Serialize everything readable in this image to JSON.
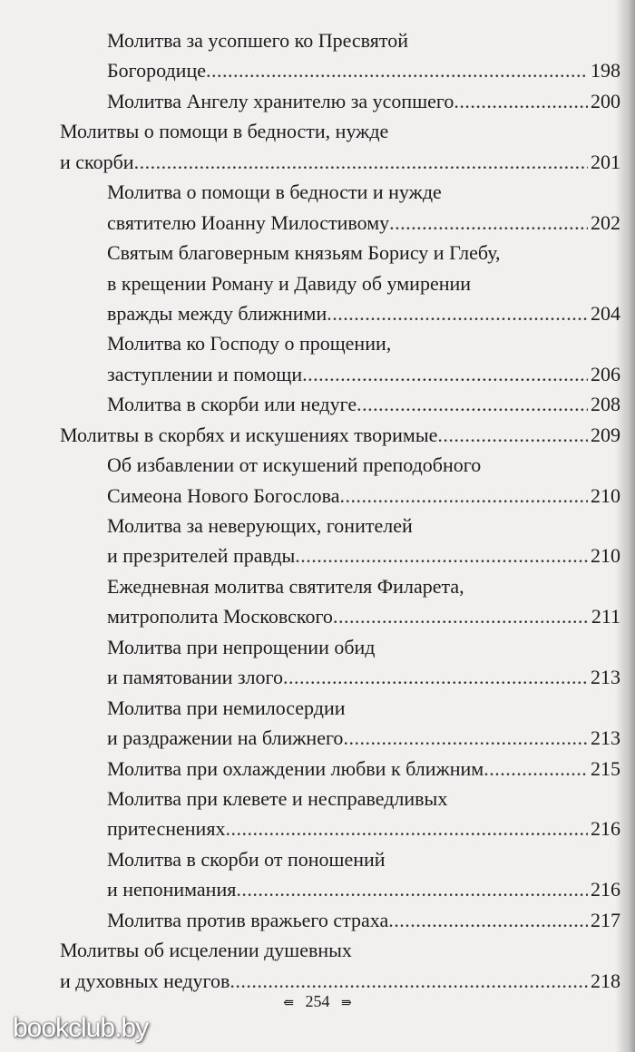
{
  "entries": [
    {
      "level": 2,
      "lines": [
        "Молитва за усопшего ко Пресвятой",
        "Богородице"
      ],
      "page": "198"
    },
    {
      "level": 2,
      "lines": [
        "Молитва Ангелу хранителю за усопшего"
      ],
      "page": "200"
    },
    {
      "level": 1,
      "lines": [
        "Молитвы о помощи в бедности, нужде",
        "и скорби"
      ],
      "page": "201"
    },
    {
      "level": 2,
      "lines": [
        "Молитва о помощи в бедности и нужде",
        "святителю Иоанну Милостивому"
      ],
      "page": "202"
    },
    {
      "level": 2,
      "lines": [
        "Святым благоверным князьям Борису и Глебу,",
        "в крещении Роману и Давиду об умирении",
        "вражды между ближними"
      ],
      "page": "204"
    },
    {
      "level": 2,
      "lines": [
        "Молитва ко Господу о прощении,",
        "заступлении и помощи"
      ],
      "page": "206"
    },
    {
      "level": 2,
      "lines": [
        "Молитва в скорби или недуге"
      ],
      "page": "208"
    },
    {
      "level": 1,
      "lines": [
        "Молитвы в скорбях и искушениях творимые"
      ],
      "page": "209"
    },
    {
      "level": 2,
      "lines": [
        "Об избавлении от искушений преподобного",
        "Симеона Нового Богослова"
      ],
      "page": "210"
    },
    {
      "level": 2,
      "lines": [
        "Молитва за неверующих, гонителей",
        "и презрителей правды"
      ],
      "page": "210"
    },
    {
      "level": 2,
      "lines": [
        "Ежедневная молитва святителя Филарета,",
        "митрополита Московского"
      ],
      "page": "211"
    },
    {
      "level": 2,
      "lines": [
        "Молитва при непрощении обид",
        "и памятовании злого"
      ],
      "page": "213"
    },
    {
      "level": 2,
      "lines": [
        "Молитва при немилосердии",
        "и раздражении на ближнего"
      ],
      "page": "213"
    },
    {
      "level": 2,
      "lines": [
        "Молитва при охлаждении любви к ближним"
      ],
      "page": "215"
    },
    {
      "level": 2,
      "lines": [
        "Молитва при клевете и несправедливых",
        "притеснениях"
      ],
      "page": "216"
    },
    {
      "level": 2,
      "lines": [
        "Молитва в скорби от поношений",
        "и непонимания"
      ],
      "page": "216"
    },
    {
      "level": 2,
      "lines": [
        "Молитва против вражьего страха"
      ],
      "page": "217"
    },
    {
      "level": 1,
      "lines": [
        "Молитвы об исцелении душевных",
        "и духовных недугов"
      ],
      "page": "218"
    }
  ],
  "folio": {
    "page_number": "254",
    "ornament_left": "⇚",
    "ornament_right": "⇛"
  },
  "watermark": "bookclub.by"
}
